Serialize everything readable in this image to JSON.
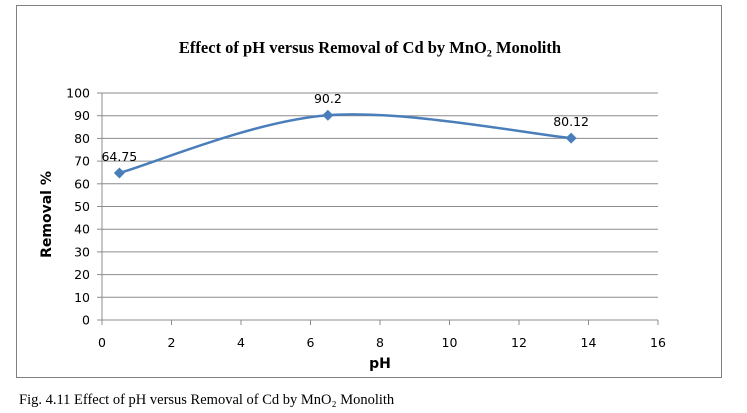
{
  "chart_data": {
    "type": "line",
    "title": "Effect of pH versus Removal of Cd  by  MnO₂ Monolith",
    "xlabel": "pH",
    "ylabel": "Removal %",
    "xlim": [
      0,
      16
    ],
    "ylim": [
      0,
      100
    ],
    "xticks": [
      0,
      2,
      4,
      6,
      8,
      10,
      12,
      14,
      16
    ],
    "yticks": [
      0,
      10,
      20,
      30,
      40,
      50,
      60,
      70,
      80,
      90,
      100
    ],
    "grid": true,
    "smooth": true,
    "series": [
      {
        "x": [
          0.5,
          6.5,
          13.5
        ],
        "y": [
          64.75,
          90.2,
          80.12
        ],
        "labels": [
          "64.75",
          "90.2",
          "80.12"
        ],
        "color": "#4a7ebb",
        "marker": "diamond"
      }
    ]
  },
  "caption": "Fig. 4.11 Effect of pH versus Removal of Cd by MnO₂ Monolith"
}
